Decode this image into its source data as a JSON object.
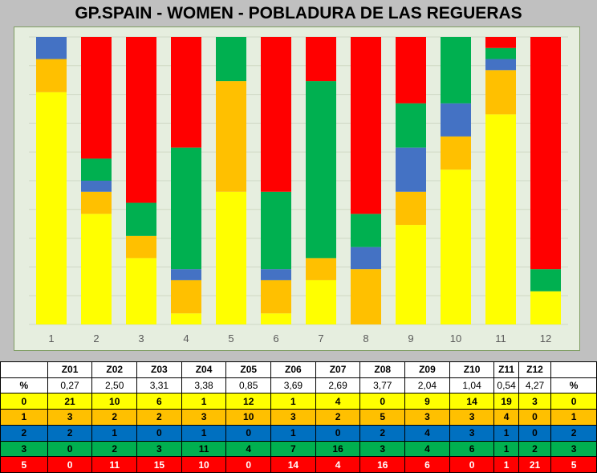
{
  "title": "GP.SPAIN - WOMEN  - POBLADURA DE LAS REGUERAS",
  "colors": {
    "score_0": "#ffff00",
    "score_1": "#ffc000",
    "score_2": "#4472c4",
    "score_3": "#00b050",
    "score_5": "#ff0000",
    "plot_background": "#e6eedf"
  },
  "chart_data": {
    "type": "bar",
    "stacked": "percent",
    "categories": [
      "1",
      "2",
      "3",
      "4",
      "5",
      "6",
      "7",
      "8",
      "9",
      "10",
      "11",
      "12"
    ],
    "series": [
      {
        "name": "0",
        "color": "#ffff00",
        "values": [
          21,
          10,
          6,
          1,
          12,
          1,
          4,
          0,
          9,
          14,
          19,
          3
        ]
      },
      {
        "name": "1",
        "color": "#ffc000",
        "values": [
          3,
          2,
          2,
          3,
          10,
          3,
          2,
          5,
          3,
          3,
          4,
          0
        ]
      },
      {
        "name": "2",
        "color": "#4472c4",
        "values": [
          2,
          1,
          0,
          1,
          0,
          1,
          0,
          2,
          4,
          3,
          1,
          0
        ]
      },
      {
        "name": "3",
        "color": "#00b050",
        "values": [
          0,
          2,
          3,
          11,
          4,
          7,
          16,
          3,
          4,
          6,
          1,
          2
        ]
      },
      {
        "name": "5",
        "color": "#ff0000",
        "values": [
          0,
          11,
          15,
          10,
          0,
          14,
          4,
          16,
          6,
          0,
          1,
          21
        ]
      }
    ],
    "ylim": [
      0,
      100
    ],
    "grid": "horizontal",
    "legend": "none"
  },
  "table": {
    "zones": [
      "Z01",
      "Z02",
      "Z03",
      "Z04",
      "Z05",
      "Z06",
      "Z07",
      "Z08",
      "Z09",
      "Z10",
      "Z11",
      "Z12"
    ],
    "percent_label": "%",
    "percent_values": [
      "0,27",
      "2,50",
      "3,31",
      "3,38",
      "0,85",
      "3,69",
      "2,69",
      "3,77",
      "2,04",
      "1,04",
      "0,54",
      "4,27"
    ],
    "rows": [
      {
        "label": "0",
        "values": [
          "21",
          "10",
          "6",
          "1",
          "12",
          "1",
          "4",
          "0",
          "9",
          "14",
          "19",
          "3"
        ],
        "end": "0"
      },
      {
        "label": "1",
        "values": [
          "3",
          "2",
          "2",
          "3",
          "10",
          "3",
          "2",
          "5",
          "3",
          "3",
          "4",
          "0"
        ],
        "end": "1"
      },
      {
        "label": "2",
        "values": [
          "2",
          "1",
          "0",
          "1",
          "0",
          "1",
          "0",
          "2",
          "4",
          "3",
          "1",
          "0"
        ],
        "end": "2"
      },
      {
        "label": "3",
        "values": [
          "0",
          "2",
          "3",
          "11",
          "4",
          "7",
          "16",
          "3",
          "4",
          "6",
          "1",
          "2"
        ],
        "end": "3"
      },
      {
        "label": "5",
        "values": [
          "0",
          "11",
          "15",
          "10",
          "0",
          "14",
          "4",
          "16",
          "6",
          "0",
          "1",
          "21"
        ],
        "end": "5"
      }
    ]
  }
}
